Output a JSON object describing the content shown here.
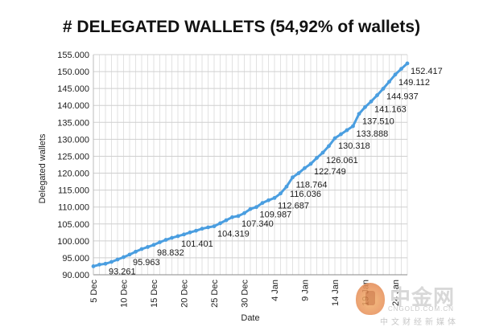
{
  "chart_data": {
    "type": "line",
    "title": "# DELEGATED WALLETS (54,92% of wallets)",
    "xlabel": "Date",
    "ylabel": "Delegated wallets",
    "ylim": [
      90000,
      155000
    ],
    "y_ticks": [
      "90.000",
      "95.000",
      "100.000",
      "105.000",
      "110.000",
      "115.000",
      "120.000",
      "125.000",
      "130.000",
      "135.000",
      "140.000",
      "145.000",
      "150.000",
      "155.000"
    ],
    "x_ticks": [
      "5 Dec",
      "10 Dec",
      "15 Dec",
      "20 Dec",
      "25 Dec",
      "30 Dec",
      "4 Jan",
      "9 Jan",
      "14 Jan",
      "19 Jan",
      "24 Jan"
    ],
    "grid": true,
    "series": [
      {
        "color": "#4a9ee0",
        "values": [
          92500,
          93000,
          93261,
          93800,
          94500,
          95200,
          95963,
          96800,
          97600,
          98200,
          98832,
          99600,
          100300,
          100900,
          101401,
          101900,
          102500,
          103000,
          103600,
          104000,
          104319,
          105200,
          106100,
          107000,
          107340,
          108200,
          109400,
          109987,
          111200,
          112000,
          112687,
          114000,
          116036,
          118764,
          120000,
          121500,
          122749,
          124500,
          126061,
          128000,
          130318,
          131500,
          132700,
          133888,
          137510,
          139500,
          141163,
          143000,
          144937,
          147000,
          149112,
          150800,
          152417
        ]
      }
    ],
    "data_labels": [
      {
        "i": 2,
        "text": "93.261"
      },
      {
        "i": 6,
        "text": "95.963"
      },
      {
        "i": 10,
        "text": "98.832"
      },
      {
        "i": 14,
        "text": "101.401"
      },
      {
        "i": 20,
        "text": "104.319"
      },
      {
        "i": 24,
        "text": "107.340"
      },
      {
        "i": 27,
        "text": "109.987"
      },
      {
        "i": 30,
        "text": "112.687"
      },
      {
        "i": 32,
        "text": "116.036"
      },
      {
        "i": 33,
        "text": "118.764"
      },
      {
        "i": 36,
        "text": "122.749"
      },
      {
        "i": 38,
        "text": "126.061"
      },
      {
        "i": 40,
        "text": "130.318"
      },
      {
        "i": 43,
        "text": "133.888"
      },
      {
        "i": 44,
        "text": "137.510"
      },
      {
        "i": 46,
        "text": "141.163"
      },
      {
        "i": 48,
        "text": "144.937"
      },
      {
        "i": 50,
        "text": "149.112"
      },
      {
        "i": 52,
        "text": "152.417"
      }
    ]
  },
  "watermark": {
    "name": "中金网",
    "url": "CNGOLD.COM.CN",
    "tagline": "中文财经新媒体",
    "icon": "gold-coin-logo-icon"
  }
}
